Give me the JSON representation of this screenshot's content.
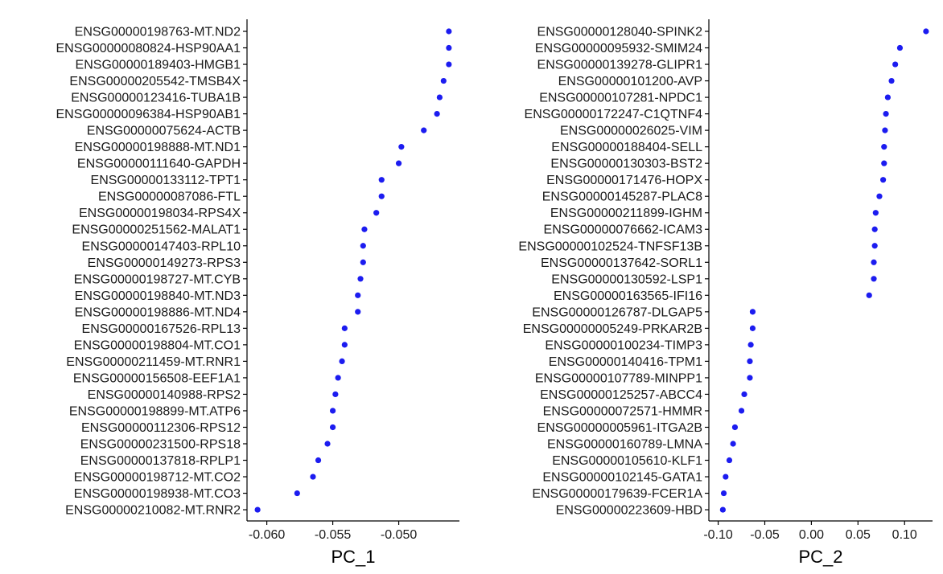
{
  "chart_data": [
    {
      "type": "scatter",
      "xlabel": "PC_1",
      "xlim": [
        -0.0615,
        -0.0454
      ],
      "xticks": [
        -0.06,
        -0.055,
        -0.05
      ],
      "xtick_labels": [
        "-0.060",
        "-0.055",
        "-0.050"
      ],
      "point_color": "#1c1cf0",
      "genes": [
        "ENSG00000198763-MT.ND2",
        "ENSG00000080824-HSP90AA1",
        "ENSG00000189403-HMGB1",
        "ENSG00000205542-TMSB4X",
        "ENSG00000123416-TUBA1B",
        "ENSG00000096384-HSP90AB1",
        "ENSG00000075624-ACTB",
        "ENSG00000198888-MT.ND1",
        "ENSG00000111640-GAPDH",
        "ENSG00000133112-TPT1",
        "ENSG00000087086-FTL",
        "ENSG00000198034-RPS4X",
        "ENSG00000251562-MALAT1",
        "ENSG00000147403-RPL10",
        "ENSG00000149273-RPS3",
        "ENSG00000198727-MT.CYB",
        "ENSG00000198840-MT.ND3",
        "ENSG00000198886-MT.ND4",
        "ENSG00000167526-RPL13",
        "ENSG00000198804-MT.CO1",
        "ENSG00000211459-MT.RNR1",
        "ENSG00000156508-EEF1A1",
        "ENSG00000140988-RPS2",
        "ENSG00000198899-MT.ATP6",
        "ENSG00000112306-RPS12",
        "ENSG00000231500-RPS18",
        "ENSG00000137818-RPLP1",
        "ENSG00000198712-MT.CO2",
        "ENSG00000198938-MT.CO3",
        "ENSG00000210082-MT.RNR2"
      ],
      "values": [
        -0.0462,
        -0.0462,
        -0.0462,
        -0.0466,
        -0.0469,
        -0.0471,
        -0.0481,
        -0.0498,
        -0.05,
        -0.0513,
        -0.0513,
        -0.0517,
        -0.0526,
        -0.0527,
        -0.0527,
        -0.0529,
        -0.0531,
        -0.0531,
        -0.0541,
        -0.0541,
        -0.0543,
        -0.0546,
        -0.0548,
        -0.055,
        -0.055,
        -0.0554,
        -0.0561,
        -0.0565,
        -0.0577,
        -0.0607
      ]
    },
    {
      "type": "scatter",
      "xlabel": "PC_2",
      "xlim": [
        -0.11,
        0.13
      ],
      "xticks": [
        -0.1,
        -0.05,
        0.0,
        0.05,
        0.1
      ],
      "xtick_labels": [
        "-0.10",
        "-0.05",
        "0.00",
        "0.05",
        "0.10"
      ],
      "point_color": "#1c1cf0",
      "genes": [
        "ENSG00000128040-SPINK2",
        "ENSG00000095932-SMIM24",
        "ENSG00000139278-GLIPR1",
        "ENSG00000101200-AVP",
        "ENSG00000107281-NPDC1",
        "ENSG00000172247-C1QTNF4",
        "ENSG00000026025-VIM",
        "ENSG00000188404-SELL",
        "ENSG00000130303-BST2",
        "ENSG00000171476-HOPX",
        "ENSG00000145287-PLAC8",
        "ENSG00000211899-IGHM",
        "ENSG00000076662-ICAM3",
        "ENSG00000102524-TNFSF13B",
        "ENSG00000137642-SORL1",
        "ENSG00000130592-LSP1",
        "ENSG00000163565-IFI16",
        "ENSG00000126787-DLGAP5",
        "ENSG00000005249-PRKAR2B",
        "ENSG00000100234-TIMP3",
        "ENSG00000140416-TPM1",
        "ENSG00000107789-MINPP1",
        "ENSG00000125257-ABCC4",
        "ENSG00000072571-HMMR",
        "ENSG00000005961-ITGA2B",
        "ENSG00000160789-LMNA",
        "ENSG00000105610-KLF1",
        "ENSG00000102145-GATA1",
        "ENSG00000179639-FCER1A",
        "ENSG00000223609-HBD"
      ],
      "values": [
        0.123,
        0.095,
        0.09,
        0.086,
        0.082,
        0.08,
        0.079,
        0.078,
        0.078,
        0.077,
        0.073,
        0.069,
        0.068,
        0.068,
        0.067,
        0.067,
        0.062,
        -0.063,
        -0.063,
        -0.065,
        -0.066,
        -0.066,
        -0.072,
        -0.075,
        -0.082,
        -0.084,
        -0.088,
        -0.092,
        -0.094,
        -0.095
      ]
    }
  ]
}
